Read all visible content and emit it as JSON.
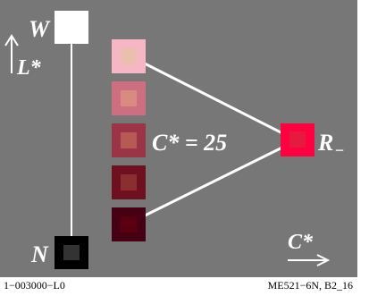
{
  "nodes": {
    "white": {
      "label": "W",
      "color": "#ffffff"
    },
    "black": {
      "label": "N",
      "color": "#000000",
      "inner": "#333333"
    },
    "red": {
      "label": "R",
      "subscript": "−",
      "color": "#ff0040",
      "inner": "#e6193f"
    }
  },
  "chroma_label": "C* = 25",
  "axis_lightness": "L*",
  "axis_chroma": "C*",
  "samples": [
    {
      "outer": "#f7b6c4",
      "inner": "#eabfae"
    },
    {
      "outer": "#cd6f80",
      "inner": "#d88b80"
    },
    {
      "outer": "#9a3446",
      "inner": "#b75a55"
    },
    {
      "outer": "#6e1020",
      "inner": "#8a2e2f"
    },
    {
      "outer": "#460014",
      "inner": "#5a0010"
    }
  ],
  "footer": {
    "left": "1−003000−L0",
    "right": "ME521−6N, B2_16"
  },
  "colors": {
    "background": "#777777",
    "lines": "#ffffff"
  }
}
